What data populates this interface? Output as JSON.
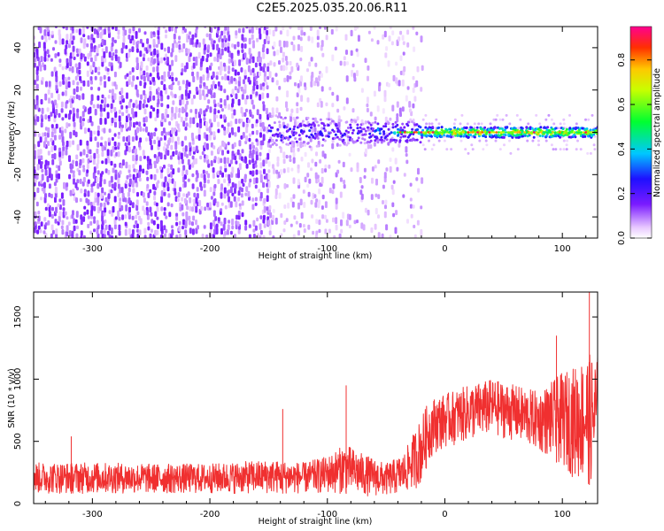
{
  "title": "C2E5.2025.035.20.06.R11",
  "chart_data": [
    {
      "type": "heatmap",
      "xlabel": "Height of straight line (km)",
      "ylabel": "Frequency (Hz)",
      "xlim": [
        -350,
        130
      ],
      "ylim": [
        -50,
        50
      ],
      "xticks": [
        -300,
        -200,
        -100,
        0,
        100
      ],
      "yticks": [
        -40,
        -20,
        0,
        20,
        40
      ],
      "colorbar": {
        "label": "Normalized spectral amplitude",
        "range": [
          0,
          0.95
        ],
        "ticks": [
          "0.0",
          "0.2",
          "0.4",
          "0.6",
          "0.8"
        ],
        "colormap": "rainbow (magenta-white, violet, blue, cyan, green, yellow, orange, red, magenta)"
      },
      "regions": [
        {
          "x": [
            -350,
            -150
          ],
          "freq": [
            -50,
            50
          ],
          "amplitude": "0.0-0.15 noise, dense"
        },
        {
          "x": [
            -150,
            -100
          ],
          "freq": [
            -50,
            50
          ],
          "amplitude": "0.0-0.1 noise, sparse"
        },
        {
          "x": [
            -100,
            -20
          ],
          "freq": [
            -50,
            50
          ],
          "amplitude": "0.0-0.1 noise, sparse"
        },
        {
          "x": [
            -150,
            -60
          ],
          "freq": [
            -8,
            10
          ],
          "amplitude": "0.15-0.3 signal"
        },
        {
          "x": [
            -60,
            130
          ],
          "freq": [
            -3,
            3
          ],
          "amplitude": "0.3-0.9 carrier near 0 Hz"
        }
      ]
    },
    {
      "type": "line",
      "xlabel": "Height of straight line (km)",
      "ylabel": "SNR (10 * v/v)",
      "xlim": [
        -350,
        130
      ],
      "ylim": [
        0,
        1700
      ],
      "xticks": [
        -300,
        -200,
        -100,
        0,
        100
      ],
      "yticks": [
        0,
        500,
        1000,
        1500
      ],
      "color": "#f03030",
      "envelope": {
        "x": [
          -350,
          -300,
          -250,
          -200,
          -150,
          -120,
          -100,
          -85,
          -70,
          -50,
          -35,
          -25,
          -20,
          -15,
          -10,
          0,
          20,
          40,
          60,
          80,
          100,
          110,
          120,
          130
        ],
        "low": [
          80,
          80,
          80,
          80,
          80,
          80,
          80,
          80,
          60,
          60,
          80,
          120,
          150,
          300,
          400,
          450,
          500,
          550,
          500,
          420,
          300,
          200,
          150,
          150
        ],
        "high": [
          330,
          330,
          320,
          320,
          350,
          330,
          380,
          480,
          400,
          320,
          400,
          600,
          700,
          800,
          850,
          880,
          950,
          1000,
          950,
          900,
          1050,
          1100,
          1200,
          1200
        ]
      },
      "peaks": [
        {
          "x": -318,
          "y": 540
        },
        {
          "x": -138,
          "y": 760
        },
        {
          "x": -84,
          "y": 950
        },
        {
          "x": 95,
          "y": 1350
        },
        {
          "x": 123,
          "y": 1700
        }
      ]
    }
  ]
}
